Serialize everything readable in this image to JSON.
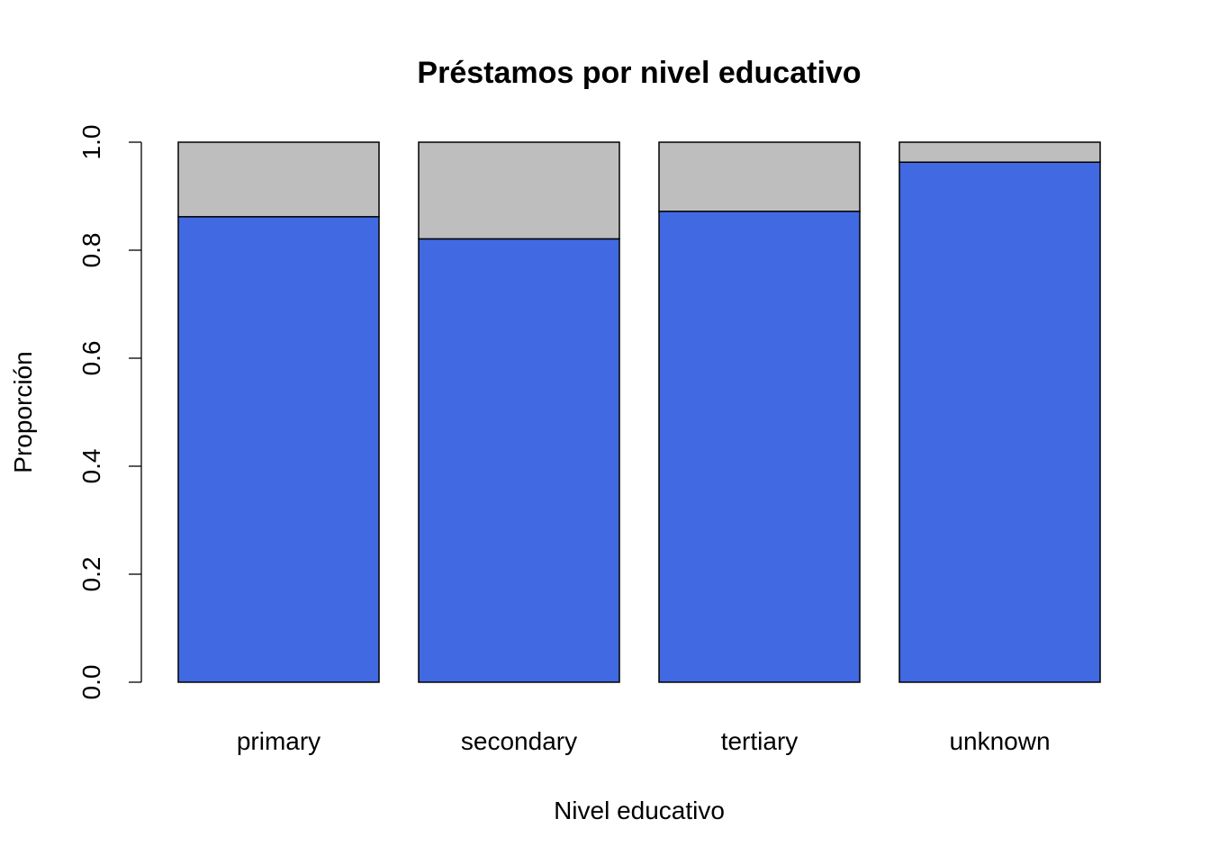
{
  "chart_data": {
    "type": "bar",
    "stacked": true,
    "title": "Préstamos por nivel educativo",
    "xlabel": "Nivel educativo",
    "ylabel": "Proporción",
    "categories": [
      "primary",
      "secondary",
      "tertiary",
      "unknown"
    ],
    "series": [
      {
        "values": [
          0.862,
          0.821,
          0.872,
          0.963
        ],
        "color": "#4169E1"
      },
      {
        "values": [
          0.138,
          0.179,
          0.128,
          0.037
        ],
        "color": "#BEBEBE"
      }
    ],
    "ylim": [
      0,
      1
    ],
    "yticks": [
      "0.0",
      "0.2",
      "0.4",
      "0.6",
      "0.8",
      "1.0"
    ],
    "grid": false,
    "legend": "none"
  }
}
